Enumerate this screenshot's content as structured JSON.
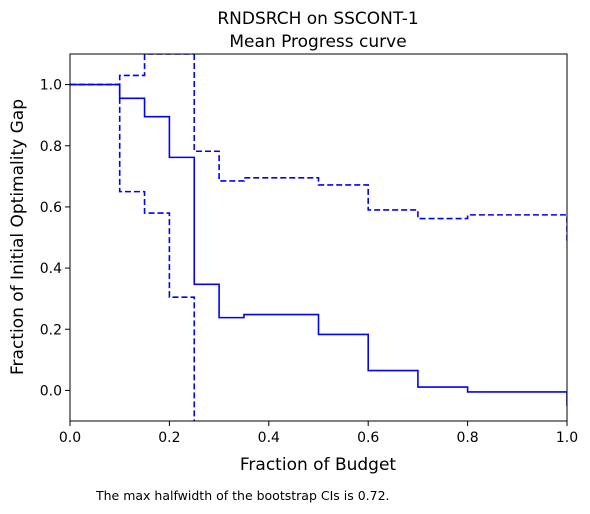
{
  "chart_data": {
    "type": "line",
    "title": "RNDSRCH on SSCONT-1",
    "subtitle": "Mean Progress curve",
    "xlabel": "Fraction of Budget",
    "ylabel": "Fraction of Initial Optimality Gap",
    "xlim": [
      0.0,
      1.0
    ],
    "ylim": [
      -0.1,
      1.1
    ],
    "xticks": [
      "0.0",
      "0.2",
      "0.4",
      "0.6",
      "0.8",
      "1.0"
    ],
    "yticks": [
      "0.0",
      "0.2",
      "0.4",
      "0.6",
      "0.8",
      "1.0"
    ],
    "grid": false,
    "legend": false,
    "color": "#0000ff",
    "series": [
      {
        "style": "solid",
        "x": [
          0.0,
          0.1,
          0.1,
          0.15,
          0.15,
          0.2,
          0.2,
          0.25,
          0.25,
          0.3,
          0.3,
          0.35,
          0.35,
          0.5,
          0.5,
          0.6,
          0.6,
          0.7,
          0.7,
          0.8,
          0.8,
          1.0,
          1.0
        ],
        "y": [
          1.0,
          1.0,
          0.955,
          0.955,
          0.895,
          0.895,
          0.762,
          0.762,
          0.347,
          0.347,
          0.238,
          0.238,
          0.248,
          0.248,
          0.183,
          0.183,
          0.065,
          0.065,
          0.011,
          0.011,
          -0.005,
          -0.005,
          -0.05
        ]
      },
      {
        "style": "dashed",
        "x": [
          0.0,
          0.1,
          0.1,
          0.15,
          0.15,
          0.2,
          0.2,
          0.25,
          0.25
        ],
        "y": [
          1.0,
          1.0,
          1.03,
          1.03,
          1.1,
          1.1,
          1.1,
          1.1,
          1.1
        ]
      },
      {
        "style": "dashed",
        "x": [
          0.25,
          0.25,
          0.3,
          0.3,
          0.35,
          0.35,
          0.5,
          0.5,
          0.6,
          0.6,
          0.7,
          0.7,
          0.8,
          0.8,
          1.0,
          1.0
        ],
        "y": [
          1.1,
          0.782,
          0.782,
          0.685,
          0.685,
          0.695,
          0.695,
          0.672,
          0.672,
          0.59,
          0.59,
          0.562,
          0.562,
          0.574,
          0.574,
          0.48
        ]
      },
      {
        "style": "dashed",
        "x": [
          0.0,
          0.1,
          0.1,
          0.15,
          0.15,
          0.2,
          0.2,
          0.25,
          0.25
        ],
        "y": [
          1.0,
          1.0,
          0.65,
          0.65,
          0.58,
          0.58,
          0.305,
          0.305,
          -0.1
        ]
      }
    ]
  },
  "footnote": "The max halfwidth of the bootstrap CIs is 0.72."
}
